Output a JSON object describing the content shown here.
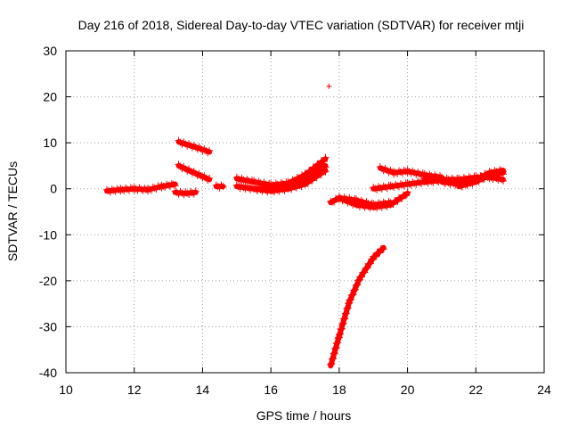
{
  "chart_data": {
    "type": "scatter",
    "title": "Day 216 of 2018, Sidereal Day-to-day VTEC variation (SDTVAR) for receiver mtji",
    "xlabel": "GPS time / hours",
    "ylabel": "SDTVAR / TECUs",
    "xlim": [
      10,
      24
    ],
    "ylim": [
      -40,
      30
    ],
    "xticks": [
      "10",
      "12",
      "14",
      "16",
      "18",
      "20",
      "22",
      "24"
    ],
    "yticks": [
      "30",
      "20",
      "10",
      "0",
      "-10",
      "-20",
      "-30",
      "-40"
    ],
    "grid": true,
    "marker": "plus",
    "marker_color": "#ff0000",
    "series": [
      {
        "x": [
          11.2,
          11.6,
          12.0,
          12.4,
          12.8,
          13.2
        ],
        "y": [
          -0.5,
          -0.2,
          0.0,
          -0.2,
          0.5,
          1.0
        ]
      },
      {
        "x": [
          13.2,
          13.5,
          13.8
        ],
        "y": [
          -0.8,
          -1.0,
          -0.8
        ]
      },
      {
        "x": [
          13.3,
          13.6,
          13.9,
          14.2
        ],
        "y": [
          10.2,
          9.5,
          8.8,
          8.0
        ]
      },
      {
        "x": [
          13.3,
          13.6,
          13.9,
          14.2
        ],
        "y": [
          5.0,
          4.0,
          3.0,
          2.0
        ]
      },
      {
        "x": [
          14.4,
          14.6
        ],
        "y": [
          0.5,
          0.5
        ]
      },
      {
        "x": [
          15.0,
          15.5,
          16.0,
          16.5,
          17.0,
          17.6
        ],
        "y": [
          2.2,
          1.5,
          0.8,
          1.2,
          3.0,
          6.5
        ]
      },
      {
        "x": [
          15.0,
          15.5,
          16.0,
          16.5,
          17.0,
          17.6
        ],
        "y": [
          0.5,
          0.0,
          0.0,
          0.5,
          2.0,
          5.0
        ]
      },
      {
        "x": [
          15.5,
          16.0,
          16.5,
          17.0,
          17.6
        ],
        "y": [
          0.0,
          -0.5,
          0.0,
          1.0,
          4.0
        ]
      },
      {
        "x": [
          17.7
        ],
        "y": [
          22.3
        ]
      },
      {
        "x": [
          17.75,
          18.0,
          18.3,
          18.6,
          19.0,
          19.3
        ],
        "y": [
          -38.5,
          -32.0,
          -24.5,
          -19.5,
          -15.0,
          -12.8
        ]
      },
      {
        "x": [
          17.75,
          18.0,
          18.5,
          19.0,
          19.5
        ],
        "y": [
          -3.0,
          -2.0,
          -2.5,
          -3.5,
          -3.0
        ]
      },
      {
        "x": [
          18.0,
          18.5,
          19.0,
          19.5,
          20.0
        ],
        "y": [
          -2.0,
          -3.5,
          -4.0,
          -3.5,
          -1.0
        ]
      },
      {
        "x": [
          19.0,
          19.5,
          20.0,
          20.5,
          21.0
        ],
        "y": [
          0.0,
          0.5,
          1.0,
          1.5,
          1.8
        ]
      },
      {
        "x": [
          19.2,
          19.6,
          20.0,
          20.5,
          21.0
        ],
        "y": [
          4.5,
          3.5,
          3.8,
          3.0,
          2.5
        ]
      },
      {
        "x": [
          20.5,
          21.0,
          21.5,
          22.0,
          22.4,
          22.8
        ],
        "y": [
          2.0,
          2.0,
          2.0,
          2.5,
          2.5,
          2.0
        ]
      },
      {
        "x": [
          21.0,
          21.5,
          22.0,
          22.4,
          22.8
        ],
        "y": [
          1.5,
          1.0,
          2.0,
          3.5,
          4.0
        ]
      },
      {
        "x": [
          21.5,
          22.0,
          22.4,
          22.8
        ],
        "y": [
          0.5,
          1.5,
          3.0,
          3.5
        ]
      }
    ]
  }
}
